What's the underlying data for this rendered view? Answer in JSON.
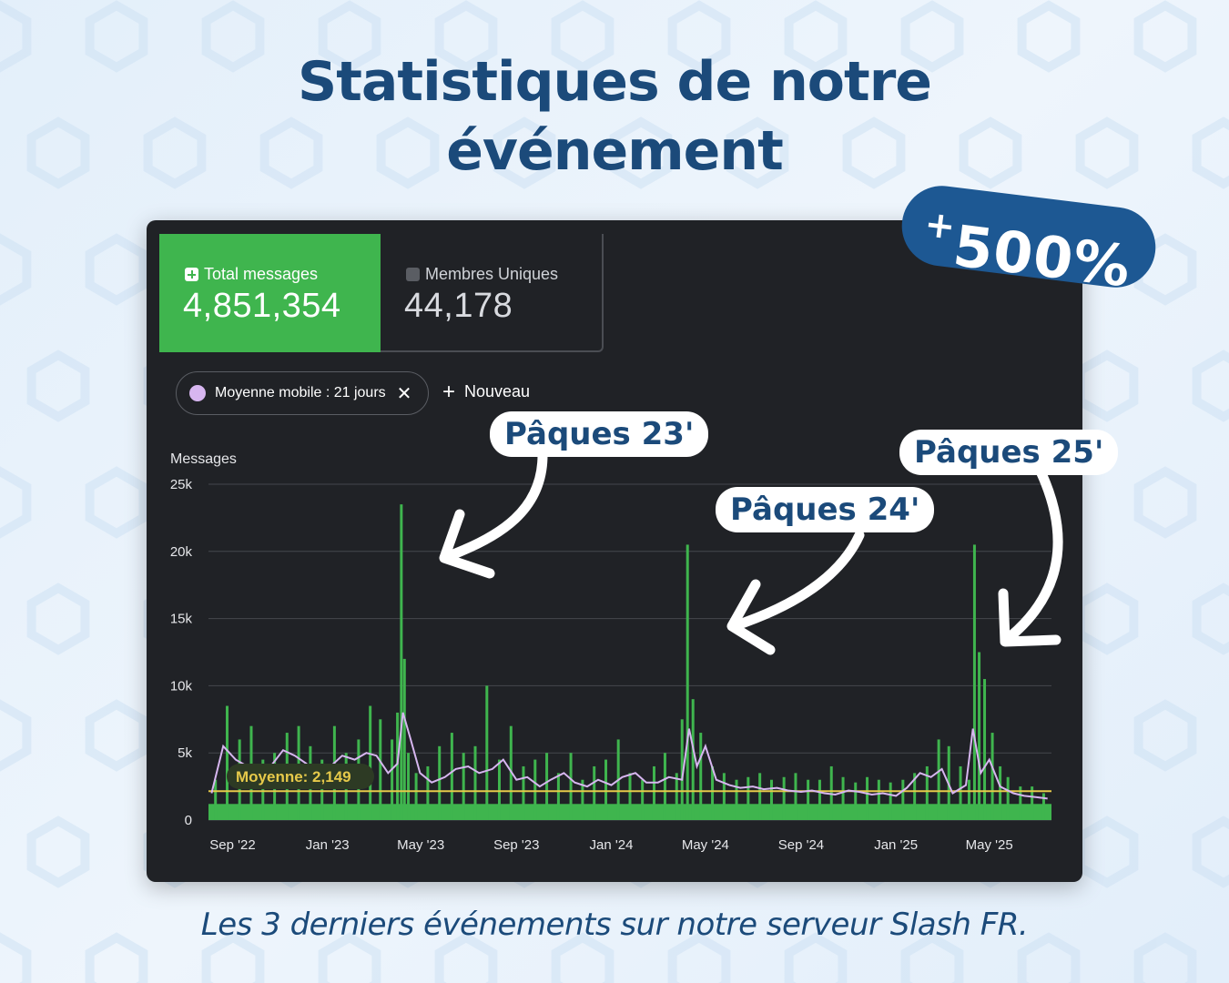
{
  "title_line1": "Statistiques de notre",
  "title_line2": "événement",
  "badge": "500%",
  "badge_prefix": "+",
  "cards": {
    "total": {
      "label": "Total messages",
      "value": "4,851,354"
    },
    "members": {
      "label": "Membres Uniques",
      "value": "44,178"
    }
  },
  "filter_pill": {
    "label": "Moyenne mobile : 21 jours",
    "close": "✕"
  },
  "new_button": {
    "label": "Nouveau",
    "icon": "plus-icon"
  },
  "annotations": [
    "Pâques 23'",
    "Pâques 24'",
    "Pâques 25'"
  ],
  "caption": "Les 3 derniers événements sur notre serveur Slash FR.",
  "colors": {
    "title": "#1b4a7a",
    "panel": "#202226",
    "bars": "#3fb54e",
    "moving_average": "#d7b6f0",
    "average_line": "#e6c94a",
    "badge": "#1d5893"
  },
  "chart_data": {
    "type": "bar",
    "ylabel": "Messages",
    "yticks": [
      "0",
      "5k",
      "10k",
      "15k",
      "20k",
      "25k"
    ],
    "ylim": [
      0,
      25000
    ],
    "xticks": [
      "Sep '22",
      "Jan '23",
      "May '23",
      "Sep '23",
      "Jan '24",
      "May '24",
      "Sep '24",
      "Jan '25",
      "May '25"
    ],
    "average": {
      "label": "Moyenne: 2,149",
      "value": 2149
    },
    "series": [
      {
        "name": "Total messages",
        "type": "bar",
        "x": [
          "2022-08-10",
          "2022-08-25",
          "2022-09-10",
          "2022-09-25",
          "2022-10-10",
          "2022-10-25",
          "2022-11-10",
          "2022-11-25",
          "2022-12-10",
          "2022-12-25",
          "2023-01-10",
          "2023-01-25",
          "2023-02-10",
          "2023-02-25",
          "2023-03-10",
          "2023-03-25",
          "2023-04-01",
          "2023-04-06",
          "2023-04-10",
          "2023-04-15",
          "2023-04-25",
          "2023-05-10",
          "2023-05-25",
          "2023-06-10",
          "2023-06-25",
          "2023-07-10",
          "2023-07-25",
          "2023-08-10",
          "2023-08-25",
          "2023-09-10",
          "2023-09-25",
          "2023-10-10",
          "2023-10-25",
          "2023-11-10",
          "2023-11-25",
          "2023-12-10",
          "2023-12-25",
          "2024-01-10",
          "2024-01-25",
          "2024-02-10",
          "2024-02-25",
          "2024-03-10",
          "2024-03-25",
          "2024-04-01",
          "2024-04-08",
          "2024-04-15",
          "2024-04-25",
          "2024-05-10",
          "2024-05-25",
          "2024-06-10",
          "2024-06-25",
          "2024-07-10",
          "2024-07-25",
          "2024-08-10",
          "2024-08-25",
          "2024-09-10",
          "2024-09-25",
          "2024-10-10",
          "2024-10-25",
          "2024-11-10",
          "2024-11-25",
          "2024-12-10",
          "2024-12-25",
          "2025-01-10",
          "2025-01-25",
          "2025-02-10",
          "2025-02-25",
          "2025-03-10",
          "2025-03-25",
          "2025-04-05",
          "2025-04-12",
          "2025-04-18",
          "2025-04-25",
          "2025-05-05",
          "2025-05-15",
          "2025-05-25",
          "2025-06-10",
          "2025-06-25",
          "2025-07-10"
        ],
        "values": [
          3000,
          8500,
          6000,
          7000,
          4500,
          5000,
          6500,
          7000,
          5500,
          4500,
          7000,
          5000,
          6000,
          8500,
          7500,
          6000,
          8000,
          23500,
          12000,
          5000,
          3500,
          4000,
          5500,
          6500,
          5000,
          5500,
          10000,
          4500,
          7000,
          4000,
          4500,
          5000,
          3500,
          5000,
          3000,
          4000,
          4500,
          6000,
          3500,
          3000,
          4000,
          5000,
          3500,
          7500,
          20500,
          9000,
          6500,
          4000,
          3500,
          3000,
          3200,
          3500,
          3000,
          3200,
          3500,
          3000,
          3000,
          4000,
          3200,
          2800,
          3200,
          3000,
          2800,
          3000,
          3500,
          4000,
          6000,
          5500,
          4000,
          3000,
          20500,
          12500,
          10500,
          6500,
          4000,
          3200,
          2500,
          2500,
          2000
        ]
      },
      {
        "name": "Moyenne mobile : 21 jours",
        "type": "line",
        "x": [
          "2022-08-05",
          "2022-08-20",
          "2022-09-05",
          "2022-09-20",
          "2022-10-05",
          "2022-10-20",
          "2022-11-05",
          "2022-11-20",
          "2022-12-05",
          "2022-12-20",
          "2023-01-05",
          "2023-01-20",
          "2023-02-05",
          "2023-02-20",
          "2023-03-05",
          "2023-03-20",
          "2023-04-01",
          "2023-04-08",
          "2023-04-18",
          "2023-04-30",
          "2023-05-15",
          "2023-06-01",
          "2023-06-15",
          "2023-07-01",
          "2023-07-15",
          "2023-08-01",
          "2023-08-15",
          "2023-09-01",
          "2023-09-15",
          "2023-10-01",
          "2023-10-15",
          "2023-11-01",
          "2023-11-15",
          "2023-12-01",
          "2023-12-15",
          "2024-01-01",
          "2024-01-15",
          "2024-02-01",
          "2024-02-15",
          "2024-03-01",
          "2024-03-15",
          "2024-04-01",
          "2024-04-10",
          "2024-04-20",
          "2024-05-01",
          "2024-05-15",
          "2024-06-01",
          "2024-06-15",
          "2024-07-01",
          "2024-07-15",
          "2024-08-01",
          "2024-08-15",
          "2024-09-01",
          "2024-09-15",
          "2024-10-01",
          "2024-10-15",
          "2024-11-01",
          "2024-11-15",
          "2024-12-01",
          "2024-12-15",
          "2025-01-01",
          "2025-01-15",
          "2025-02-01",
          "2025-02-15",
          "2025-03-01",
          "2025-03-15",
          "2025-04-01",
          "2025-04-10",
          "2025-04-20",
          "2025-05-01",
          "2025-05-15",
          "2025-06-01",
          "2025-06-15",
          "2025-07-01",
          "2025-07-15"
        ],
        "values": [
          2000,
          5500,
          4500,
          4000,
          3500,
          4000,
          5200,
          4800,
          4200,
          3200,
          4000,
          4800,
          4500,
          5000,
          4800,
          3500,
          4200,
          8000,
          6000,
          3500,
          2800,
          3200,
          3800,
          4000,
          3500,
          3800,
          4500,
          3000,
          3200,
          2500,
          3000,
          3500,
          2800,
          2500,
          3000,
          2600,
          3200,
          3500,
          2800,
          2800,
          3200,
          3000,
          6800,
          4000,
          5500,
          3000,
          2600,
          2400,
          2500,
          2300,
          2400,
          2200,
          2100,
          2200,
          2000,
          1900,
          2200,
          2100,
          1900,
          2000,
          1800,
          2400,
          3500,
          3200,
          3800,
          2000,
          2600,
          6800,
          3500,
          4500,
          2500,
          2000,
          1800,
          1700,
          1600
        ]
      }
    ]
  }
}
